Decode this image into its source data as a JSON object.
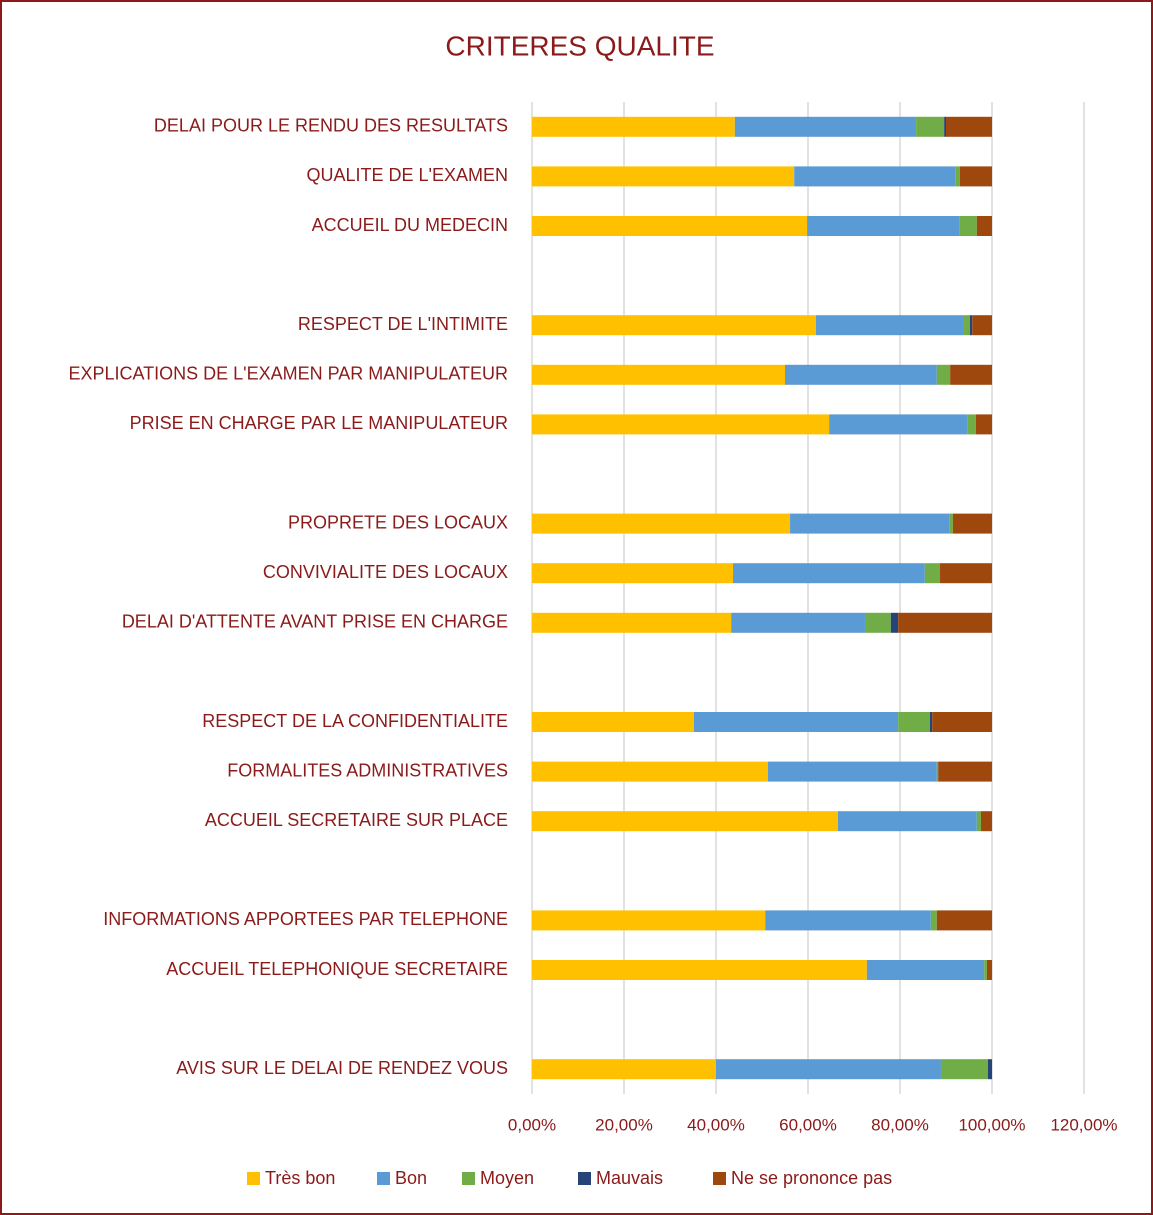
{
  "chart_data": {
    "type": "stacked-bar-horizontal",
    "title": "CRITERES QUALITE",
    "categories": [
      "DELAI POUR LE RENDU DES RESULTATS",
      "QUALITE DE L'EXAMEN",
      "ACCUEIL DU MEDECIN",
      null,
      "RESPECT DE L'INTIMITE",
      "EXPLICATIONS DE L'EXAMEN PAR MANIPULATEUR",
      "PRISE EN CHARGE PAR LE MANIPULATEUR",
      null,
      "PROPRETE DES LOCAUX",
      "CONVIVIALITE DES LOCAUX",
      "DELAI D'ATTENTE AVANT PRISE EN CHARGE",
      null,
      "RESPECT DE LA CONFIDENTIALITE",
      "FORMALITES ADMINISTRATIVES",
      "ACCUEIL SECRETAIRE SUR PLACE",
      null,
      "INFORMATIONS APPORTEES PAR TELEPHONE",
      "ACCUEIL TELEPHONIQUE SECRETAIRE",
      null,
      "AVIS SUR LE DELAI DE RENDEZ VOUS"
    ],
    "series": [
      {
        "name": "Très bon",
        "color": "#FFC000",
        "values": [
          44.1,
          57.0,
          59.8,
          null,
          61.7,
          55.0,
          64.6,
          null,
          56.1,
          43.7,
          43.3,
          null,
          35.2,
          51.3,
          66.5,
          null,
          50.7,
          72.8,
          null,
          40.0
        ]
      },
      {
        "name": "Bon",
        "color": "#5B9BD5",
        "values": [
          39.4,
          35.0,
          33.2,
          null,
          32.0,
          33.0,
          30.0,
          null,
          34.6,
          41.7,
          29.1,
          null,
          44.4,
          36.7,
          30.2,
          null,
          36.0,
          25.5,
          null,
          48.9
        ]
      },
      {
        "name": "Moyen",
        "color": "#70AD47",
        "values": [
          6.1,
          1.0,
          3.7,
          null,
          1.5,
          2.9,
          1.9,
          null,
          0.8,
          3.3,
          5.6,
          null,
          6.9,
          0.3,
          0.9,
          null,
          1.3,
          0.6,
          null,
          10.2
        ]
      },
      {
        "name": "Mauvais",
        "color": "#264478",
        "values": [
          0.4,
          0,
          0,
          null,
          0.5,
          0,
          0,
          null,
          0,
          0,
          1.6,
          null,
          0.5,
          0,
          0,
          null,
          0,
          0,
          null,
          0.9
        ]
      },
      {
        "name": "Ne se prononce pas",
        "color": "#9E480E",
        "values": [
          10.0,
          7.0,
          3.3,
          null,
          4.3,
          9.1,
          3.5,
          null,
          8.5,
          11.3,
          20.4,
          null,
          13.0,
          11.7,
          2.4,
          null,
          12.0,
          1.1,
          null,
          0
        ]
      }
    ],
    "xlim": [
      0,
      120
    ],
    "xticks": [
      {
        "value": 0,
        "label": "0,00%"
      },
      {
        "value": 20,
        "label": "20,00%"
      },
      {
        "value": 40,
        "label": "40,00%"
      },
      {
        "value": 60,
        "label": "60,00%"
      },
      {
        "value": 80,
        "label": "80,00%"
      },
      {
        "value": 100,
        "label": "100,00%"
      },
      {
        "value": 120,
        "label": "120,00%"
      }
    ],
    "grid": true,
    "legend": "bottom"
  }
}
